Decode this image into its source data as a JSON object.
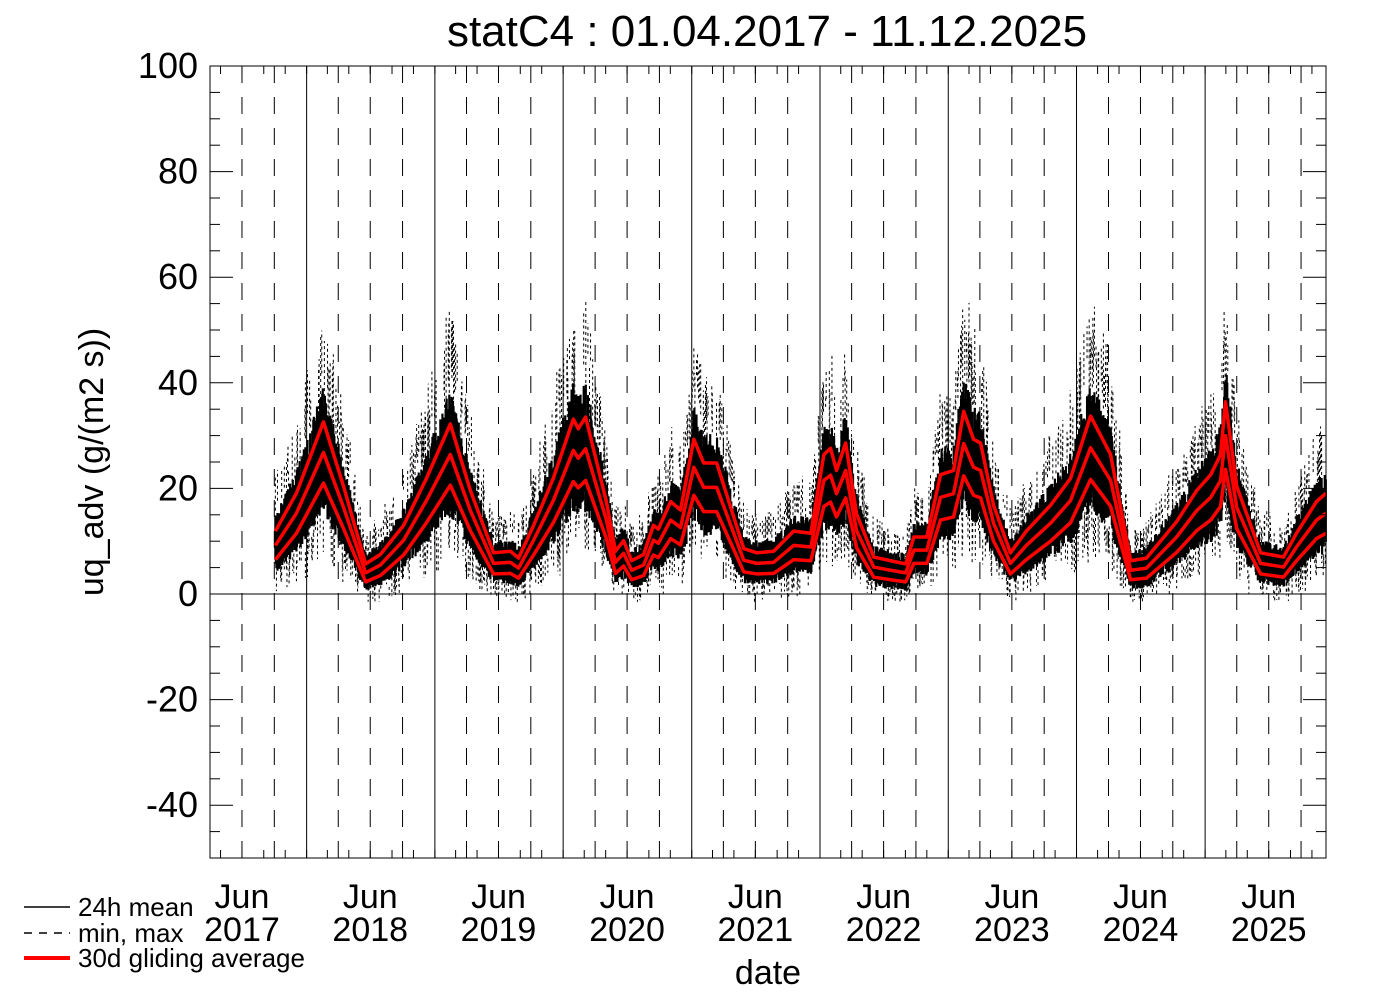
{
  "chart_data": {
    "type": "line",
    "title": "statC4 : 01.04.2017 - 11.12.2025",
    "xlabel": "date",
    "ylabel": "uq_adv (g/(m2 s))",
    "xlim": [
      "2017-04-01",
      "2025-12-11"
    ],
    "ylim": [
      -50,
      100
    ],
    "yticks": [
      100,
      80,
      60,
      40,
      20,
      0,
      -20,
      -40
    ],
    "xticks": [
      {
        "month": "Jun",
        "year": "2017"
      },
      {
        "month": "Jun",
        "year": "2018"
      },
      {
        "month": "Jun",
        "year": "2019"
      },
      {
        "month": "Jun",
        "year": "2020"
      },
      {
        "month": "Jun",
        "year": "2021"
      },
      {
        "month": "Jun",
        "year": "2022"
      },
      {
        "month": "Jun",
        "year": "2023"
      },
      {
        "month": "Jun",
        "year": "2024"
      },
      {
        "month": "Jun",
        "year": "2025"
      }
    ],
    "grid": "vertical: solid at year start, dashed quarterly",
    "legend_placement": "bottom-left, below plot",
    "legend": [
      {
        "label": "24h mean",
        "style": "solid",
        "color": "#000000"
      },
      {
        "label": "min, max",
        "style": "dashed",
        "color": "#000000"
      },
      {
        "label": "30d gliding average",
        "style": "solid-thick",
        "color": "#ff0000"
      }
    ],
    "x": [
      "2017-10-04",
      "2017-12-03",
      "2018-02-18",
      "2018-04-16",
      "2018-06-18",
      "2018-07-30",
      "2018-10-04",
      "2018-12-08",
      "2019-02-14",
      "2019-04-12",
      "2019-06-17",
      "2019-08-04",
      "2019-08-27",
      "2019-10-09",
      "2019-12-04",
      "2020-01-30",
      "2020-02-13",
      "2020-03-05",
      "2020-05-03",
      "2020-05-29",
      "2020-06-21",
      "2020-07-14",
      "2020-08-17",
      "2020-09-14",
      "2020-09-28",
      "2020-11-02",
      "2020-11-30",
      "2021-01-07",
      "2021-02-04",
      "2021-03-13",
      "2021-05-29",
      "2021-07-05",
      "2021-08-22",
      "2021-10-18",
      "2021-12-06",
      "2022-01-12",
      "2022-01-31",
      "2022-02-17",
      "2022-03-15",
      "2022-04-15",
      "2022-06-03",
      "2022-07-21",
      "2022-09-02",
      "2022-09-25",
      "2022-11-01",
      "2022-12-10",
      "2023-01-16",
      "2023-02-14",
      "2023-03-14",
      "2023-04-03",
      "2023-05-10",
      "2023-06-27",
      "2023-08-11",
      "2023-10-19",
      "2023-12-15",
      "2024-02-10",
      "2024-04-07",
      "2024-06-03",
      "2024-07-18",
      "2024-10-12",
      "2024-12-08",
      "2025-01-17",
      "2025-02-14",
      "2025-02-28",
      "2025-04-01",
      "2025-06-08",
      "2025-08-12",
      "2025-09-18",
      "2025-11-14",
      "2025-12-11"
    ],
    "series": [
      {
        "name": "30d gliding average",
        "role": "mean",
        "color": "#ff0000",
        "values": [
          9.2,
          15.3,
          26.8,
          16.4,
          4.0,
          5.5,
          10.2,
          17.7,
          26.4,
          15.8,
          5.8,
          6.0,
          4.9,
          10.2,
          17.7,
          27.2,
          25.7,
          27.5,
          14.0,
          6.0,
          7.7,
          4.5,
          5.5,
          10.2,
          9.6,
          14.0,
          12.6,
          24.0,
          20.2,
          20.2,
          6.4,
          5.8,
          6.0,
          9.2,
          8.9,
          21.5,
          22.5,
          19.0,
          23.4,
          12.0,
          5.1,
          4.5,
          4.0,
          8.3,
          8.3,
          18.3,
          19.0,
          28.5,
          24.0,
          23.4,
          13.4,
          5.8,
          9.2,
          13.4,
          17.7,
          27.7,
          21.5,
          4.5,
          4.9,
          10.8,
          15.8,
          18.3,
          21.5,
          30.0,
          16.4,
          5.8,
          5.1,
          8.9,
          14.0,
          15.3
        ]
      },
      {
        "role": "max",
        "color": "#ff0000",
        "values": [
          11.9,
          19.1,
          32.6,
          20.4,
          5.7,
          7.5,
          13.0,
          21.9,
          32.2,
          19.6,
          7.8,
          8.1,
          6.8,
          13.0,
          21.9,
          33.1,
          31.3,
          33.5,
          17.5,
          8.1,
          10.1,
          6.3,
          7.5,
          13.0,
          12.3,
          17.5,
          15.9,
          29.3,
          24.8,
          24.8,
          8.6,
          7.8,
          8.1,
          11.9,
          11.5,
          26.4,
          27.6,
          23.4,
          28.6,
          15.2,
          7.0,
          6.3,
          5.7,
          10.8,
          10.8,
          22.6,
          23.4,
          34.6,
          29.3,
          28.6,
          16.8,
          7.8,
          11.9,
          16.8,
          21.9,
          33.7,
          26.4,
          6.3,
          6.8,
          13.7,
          19.6,
          22.6,
          26.4,
          36.4,
          20.4,
          7.8,
          7.0,
          11.5,
          17.5,
          19.1
        ]
      },
      {
        "role": "min",
        "color": "#ff0000",
        "values": [
          6.5,
          11.5,
          21.0,
          12.4,
          2.3,
          3.5,
          7.4,
          13.5,
          20.6,
          12.0,
          3.8,
          3.9,
          3.0,
          7.4,
          13.5,
          21.3,
          20.1,
          21.5,
          10.5,
          3.9,
          5.3,
          2.7,
          3.5,
          7.4,
          6.9,
          10.5,
          9.3,
          18.7,
          15.6,
          15.6,
          4.2,
          3.8,
          3.9,
          6.5,
          6.3,
          16.6,
          17.4,
          14.6,
          18.2,
          8.8,
          3.2,
          2.7,
          2.3,
          5.8,
          5.8,
          14.0,
          14.6,
          22.4,
          18.7,
          18.2,
          10.0,
          3.8,
          6.5,
          10.0,
          13.5,
          21.7,
          16.6,
          2.7,
          3.0,
          7.9,
          12.0,
          14.0,
          16.6,
          23.6,
          12.4,
          3.8,
          3.2,
          6.3,
          10.5,
          11.5
        ]
      }
    ]
  }
}
